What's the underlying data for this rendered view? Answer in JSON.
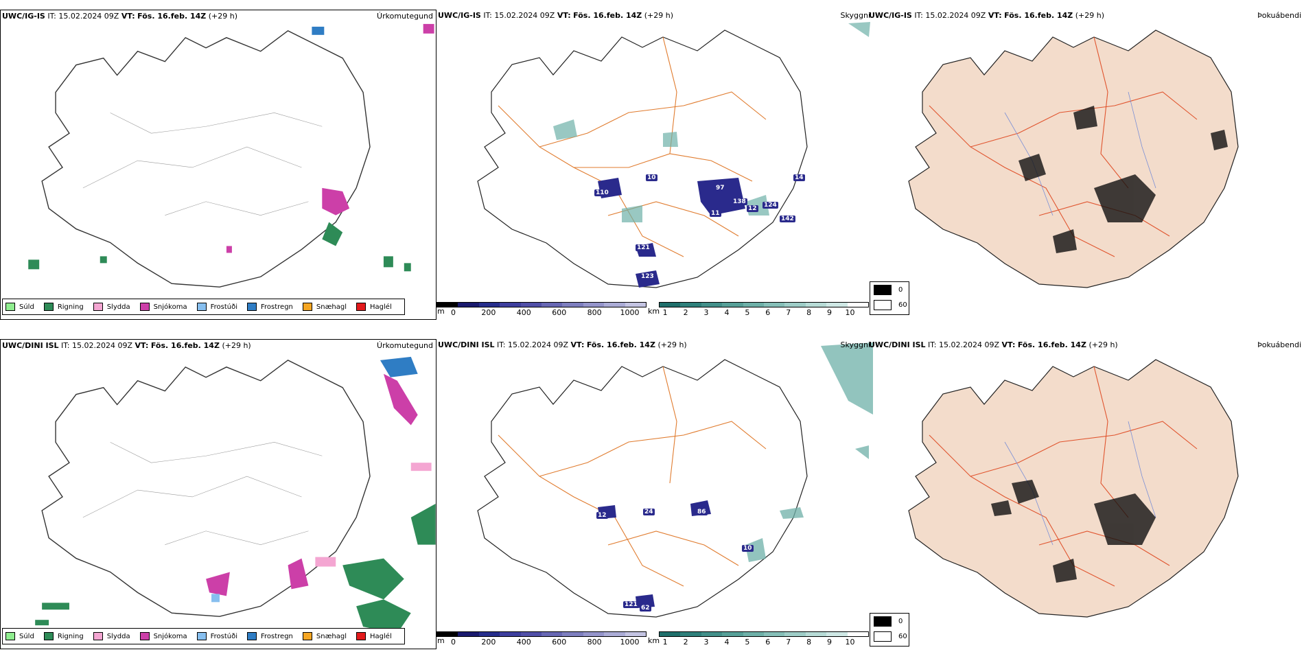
{
  "rows": [
    {
      "model": "UWC/IG-IS",
      "it_label": "IT:",
      "it_value": "15.02.2024 09Z",
      "vt_label": "VT:",
      "vt_value": "Fös. 16.feb. 14Z",
      "lead": "(+29 h)"
    },
    {
      "model": "UWC/DINI ISL",
      "it_label": "IT:",
      "it_value": "15.02.2024 09Z",
      "vt_label": "VT:",
      "vt_value": "Fös. 16.feb. 14Z",
      "lead": "(+29 h)"
    }
  ],
  "fields": {
    "precip": "Úrkomutegund",
    "visibility": "Skyggni",
    "fog": "Þokuábendi"
  },
  "precip_legend": [
    {
      "label": "Súld",
      "color": "#90ee90"
    },
    {
      "label": "Rigning",
      "color": "#2e8b57"
    },
    {
      "label": "Slydda",
      "color": "#f4a6d2"
    },
    {
      "label": "Snjókoma",
      "color": "#cc3fa8"
    },
    {
      "label": "Frostúði",
      "color": "#87bfef"
    },
    {
      "label": "Frostregn",
      "color": "#2f7dc4"
    },
    {
      "label": "Snæhagl",
      "color": "#f5a623"
    },
    {
      "label": "Haglél",
      "color": "#e31a1c"
    }
  ],
  "bar_m": {
    "unit": "m",
    "ticks": [
      "0",
      "200",
      "400",
      "600",
      "800",
      "1000"
    ],
    "colors": [
      "#000000",
      "#1a1a6e",
      "#262e8c",
      "#3e3f9e",
      "#5150a8",
      "#6868b4",
      "#7e7fbf",
      "#9595cb",
      "#abacd6",
      "#c4c4e2"
    ]
  },
  "bar_km": {
    "unit": "km",
    "ticks": [
      "1",
      "2",
      "3",
      "4",
      "5",
      "6",
      "7",
      "8",
      "9",
      "10"
    ],
    "colors": [
      "#1f6f6b",
      "#2f807b",
      "#43908a",
      "#57a098",
      "#6eb0a8",
      "#86bfb8",
      "#9ecdc7",
      "#b7dbd6",
      "#cfe8e5",
      "#ffffff"
    ]
  },
  "fog_legend": [
    {
      "label": "0",
      "color": "#000000"
    },
    {
      "label": "60",
      "color": "#ffffff"
    }
  ],
  "vis_values_top": [
    "110",
    "10",
    "97",
    "138",
    "11",
    "12",
    "124",
    "121",
    "142",
    "123",
    "14"
  ],
  "vis_values_bottom": [
    "12",
    "24",
    "86",
    "62",
    "121",
    "10"
  ]
}
